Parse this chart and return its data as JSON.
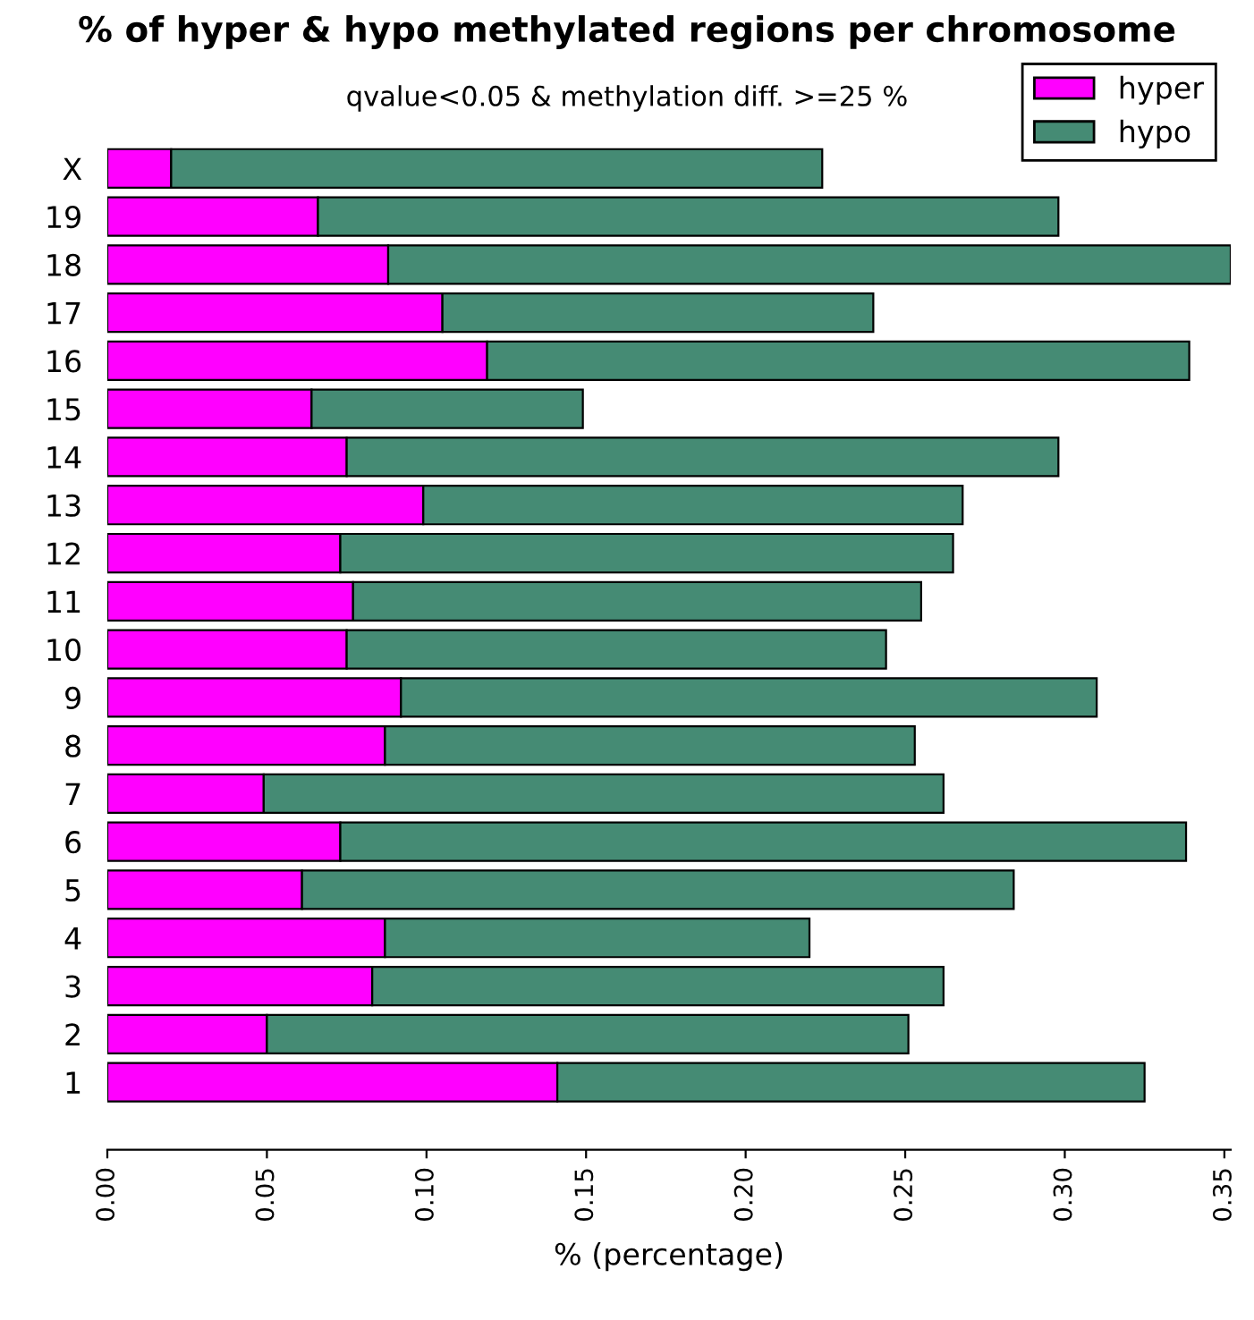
{
  "chart_data": {
    "type": "bar",
    "orientation": "horizontal",
    "stacked": true,
    "title": "% of hyper & hypo methylated regions per chromosome",
    "subtitle": "qvalue<0.05 & methylation diff. >=25 %",
    "xlabel": "% (percentage)",
    "categories": [
      "X",
      "19",
      "18",
      "17",
      "16",
      "15",
      "14",
      "13",
      "12",
      "11",
      "10",
      "9",
      "8",
      "7",
      "6",
      "5",
      "4",
      "3",
      "2",
      "1"
    ],
    "series": [
      {
        "name": "hyper",
        "color": "#ff00ff",
        "values": [
          0.02,
          0.066,
          0.088,
          0.105,
          0.119,
          0.064,
          0.075,
          0.099,
          0.073,
          0.077,
          0.075,
          0.092,
          0.087,
          0.049,
          0.073,
          0.061,
          0.087,
          0.083,
          0.05,
          0.141
        ]
      },
      {
        "name": "hypo",
        "color": "#458b74",
        "values": [
          0.204,
          0.232,
          0.264,
          0.135,
          0.22,
          0.085,
          0.223,
          0.169,
          0.192,
          0.178,
          0.169,
          0.218,
          0.166,
          0.213,
          0.265,
          0.223,
          0.133,
          0.179,
          0.201,
          0.184
        ]
      }
    ],
    "xlim": [
      0,
      0.352
    ],
    "xticks": [
      {
        "value": 0,
        "label": "0.00"
      },
      {
        "value": 0.05,
        "label": "0.05"
      },
      {
        "value": 0.1,
        "label": "0.10"
      },
      {
        "value": 0.15,
        "label": "0.15"
      },
      {
        "value": 0.2,
        "label": "0.20"
      },
      {
        "value": 0.25,
        "label": "0.25"
      },
      {
        "value": 0.3,
        "label": "0.30"
      },
      {
        "value": 0.35,
        "label": "0.35"
      }
    ],
    "legend": "top right",
    "grid": false
  }
}
